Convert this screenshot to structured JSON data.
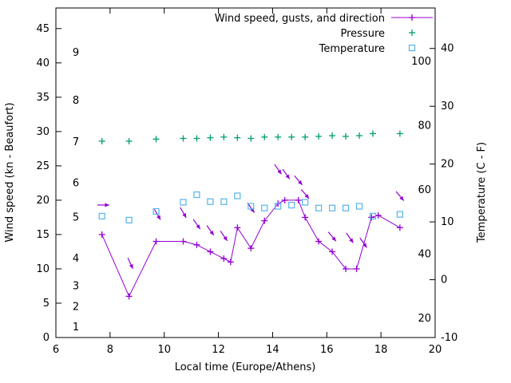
{
  "colors": {
    "background": "#ffffff",
    "axis": "#000000",
    "wind": "#9400d3",
    "pressure": "#009e73",
    "temperature": "#56b4e9"
  },
  "chart_data": {
    "type": "line",
    "title": "",
    "grid": false,
    "legend_position": "top-right-inside",
    "axes": {
      "x": {
        "label": "Local time (Europe/Athens)",
        "min": 6,
        "max": 20,
        "ticks": [
          6,
          8,
          10,
          12,
          14,
          16,
          18,
          20
        ]
      },
      "y_left": {
        "label": "Wind speed (kn - Beaufort)",
        "min": 0,
        "max": 48,
        "ticks": [
          0,
          5,
          10,
          15,
          20,
          25,
          30,
          35,
          40,
          45
        ],
        "beaufort_labels": [
          {
            "beaufort": 1,
            "kn": 1.5
          },
          {
            "beaufort": 2,
            "kn": 4.5
          },
          {
            "beaufort": 3,
            "kn": 7.5
          },
          {
            "beaufort": 4,
            "kn": 11.5
          },
          {
            "beaufort": 5,
            "kn": 17.5
          },
          {
            "beaufort": 6,
            "kn": 22.5
          },
          {
            "beaufort": 7,
            "kn": 28.5
          },
          {
            "beaufort": 8,
            "kn": 34.5
          },
          {
            "beaufort": 9,
            "kn": 41.5
          }
        ]
      },
      "y_right": {
        "label": "Temperature (C - F)",
        "min": -10,
        "max": 47,
        "ticks": [
          -10,
          0,
          10,
          20,
          30,
          40
        ],
        "fahrenheit_labels": [
          20,
          40,
          60,
          80,
          100
        ]
      }
    },
    "legend": [
      {
        "label": "Wind speed, gusts, and direction",
        "color": "#9400d3",
        "marker": "plus-line"
      },
      {
        "label": "Pressure",
        "color": "#009e73",
        "marker": "plus"
      },
      {
        "label": "Temperature",
        "color": "#56b4e9",
        "marker": "square"
      }
    ],
    "series": [
      {
        "name": "wind-speed",
        "axis": "left",
        "unit": "kn",
        "style": "linespoints",
        "marker": "plus",
        "color": "#9400d3",
        "points": [
          [
            7.7,
            15
          ],
          [
            8.7,
            6
          ],
          [
            9.7,
            14
          ],
          [
            10.7,
            14
          ],
          [
            11.2,
            13.5
          ],
          [
            11.7,
            12.5
          ],
          [
            12.2,
            11.5
          ],
          [
            12.45,
            11
          ],
          [
            12.7,
            16
          ],
          [
            13.2,
            13
          ],
          [
            13.7,
            17
          ],
          [
            14.2,
            19.5
          ],
          [
            14.45,
            20
          ],
          [
            14.95,
            20
          ],
          [
            15.2,
            17.5
          ],
          [
            15.7,
            14
          ],
          [
            16.2,
            12.5
          ],
          [
            16.7,
            10
          ],
          [
            17.1,
            10
          ],
          [
            17.65,
            17.5
          ],
          [
            17.9,
            17.8
          ],
          [
            18.7,
            16
          ]
        ]
      },
      {
        "name": "wind-gusts-direction",
        "axis": "left",
        "unit": "kn",
        "style": "arrows",
        "color": "#9400d3",
        "points": [
          [
            7.75,
            19.3,
            0
          ],
          [
            8.75,
            10.8,
            65
          ],
          [
            9.75,
            17.9,
            60
          ],
          [
            10.7,
            18.2,
            60
          ],
          [
            11.2,
            16.5,
            55
          ],
          [
            11.7,
            15.6,
            55
          ],
          [
            12.2,
            14.8,
            55
          ],
          [
            13.2,
            18.9,
            55
          ],
          [
            14.2,
            24.5,
            55
          ],
          [
            14.5,
            23.8,
            55
          ],
          [
            14.95,
            22.9,
            50
          ],
          [
            15.2,
            20.9,
            50
          ],
          [
            16.2,
            14.7,
            50
          ],
          [
            16.85,
            14.5,
            55
          ],
          [
            17.35,
            13.8,
            55
          ],
          [
            18.7,
            20.6,
            50
          ]
        ]
      },
      {
        "name": "pressure",
        "axis": "left",
        "unit": "inHg",
        "style": "points",
        "marker": "plus",
        "color": "#009e73",
        "points": [
          [
            7.7,
            28.6
          ],
          [
            8.7,
            28.6
          ],
          [
            9.7,
            28.9
          ],
          [
            10.7,
            29.0
          ],
          [
            11.2,
            29.0
          ],
          [
            11.7,
            29.1
          ],
          [
            12.2,
            29.2
          ],
          [
            12.7,
            29.1
          ],
          [
            13.2,
            29.0
          ],
          [
            13.7,
            29.2
          ],
          [
            14.2,
            29.2
          ],
          [
            14.7,
            29.2
          ],
          [
            15.2,
            29.2
          ],
          [
            15.7,
            29.3
          ],
          [
            16.2,
            29.4
          ],
          [
            16.7,
            29.3
          ],
          [
            17.2,
            29.4
          ],
          [
            17.7,
            29.7
          ],
          [
            18.7,
            29.7
          ]
        ]
      },
      {
        "name": "temperature",
        "axis": "right",
        "unit": "C",
        "style": "points",
        "marker": "square",
        "color": "#56b4e9",
        "points": [
          [
            7.7,
            11.0
          ],
          [
            8.7,
            10.3
          ],
          [
            9.7,
            11.8
          ],
          [
            10.7,
            13.4
          ],
          [
            11.2,
            14.7
          ],
          [
            11.7,
            13.5
          ],
          [
            12.2,
            13.5
          ],
          [
            12.7,
            14.5
          ],
          [
            13.2,
            12.7
          ],
          [
            13.7,
            12.4
          ],
          [
            14.2,
            12.7
          ],
          [
            14.7,
            12.9
          ],
          [
            15.2,
            13.4
          ],
          [
            15.7,
            12.4
          ],
          [
            16.2,
            12.4
          ],
          [
            16.7,
            12.4
          ],
          [
            17.2,
            12.7
          ],
          [
            17.7,
            11.0
          ],
          [
            18.7,
            11.3
          ]
        ]
      }
    ]
  }
}
